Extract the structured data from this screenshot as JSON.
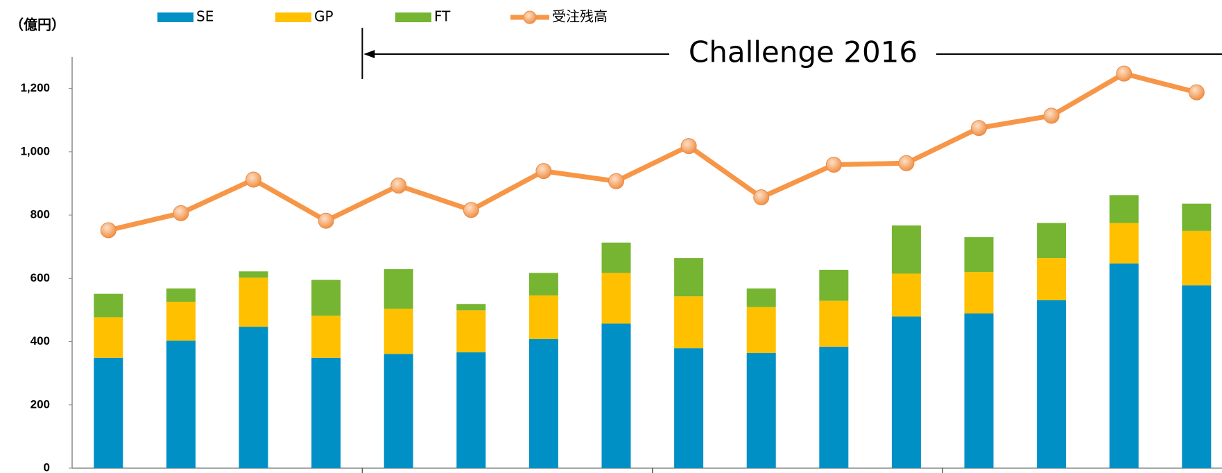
{
  "chart_data": {
    "type": "bar",
    "stacked": true,
    "ylabel": "（億円）",
    "annotations": [
      {
        "text": "Challenge 2016",
        "color": "#1f1fb4"
      }
    ],
    "categories": [
      null,
      null,
      null,
      null,
      null,
      null,
      null,
      null,
      null,
      null,
      null,
      null,
      null,
      null,
      null,
      null
    ],
    "series": [
      {
        "name": "SE",
        "color": "#0090c5",
        "values": [
          349,
          403,
          447,
          349,
          361,
          366,
          408,
          457,
          379,
          364,
          384,
          479,
          489,
          531,
          647,
          578
        ]
      },
      {
        "name": "GP",
        "color": "#ffc000",
        "values": [
          128,
          123,
          155,
          133,
          143,
          133,
          138,
          160,
          164,
          145,
          145,
          136,
          131,
          133,
          128,
          172
        ]
      },
      {
        "name": "FT",
        "color": "#76b531",
        "values": [
          74,
          42,
          20,
          113,
          125,
          20,
          71,
          96,
          121,
          59,
          98,
          152,
          110,
          111,
          88,
          86
        ]
      },
      {
        "name": "受注残高",
        "type": "line",
        "color": "#f79646",
        "values": [
          752,
          806,
          912,
          782,
          893,
          816,
          939,
          907,
          1018,
          856,
          959,
          964,
          1075,
          1114,
          1247,
          1188
        ]
      }
    ],
    "ylim": [
      0,
      1300
    ],
    "yticks": [
      0,
      200,
      400,
      600,
      800,
      {
        "value": 1000,
        "label": "1,000"
      },
      {
        "value": 1200,
        "label": "1,200"
      }
    ]
  }
}
